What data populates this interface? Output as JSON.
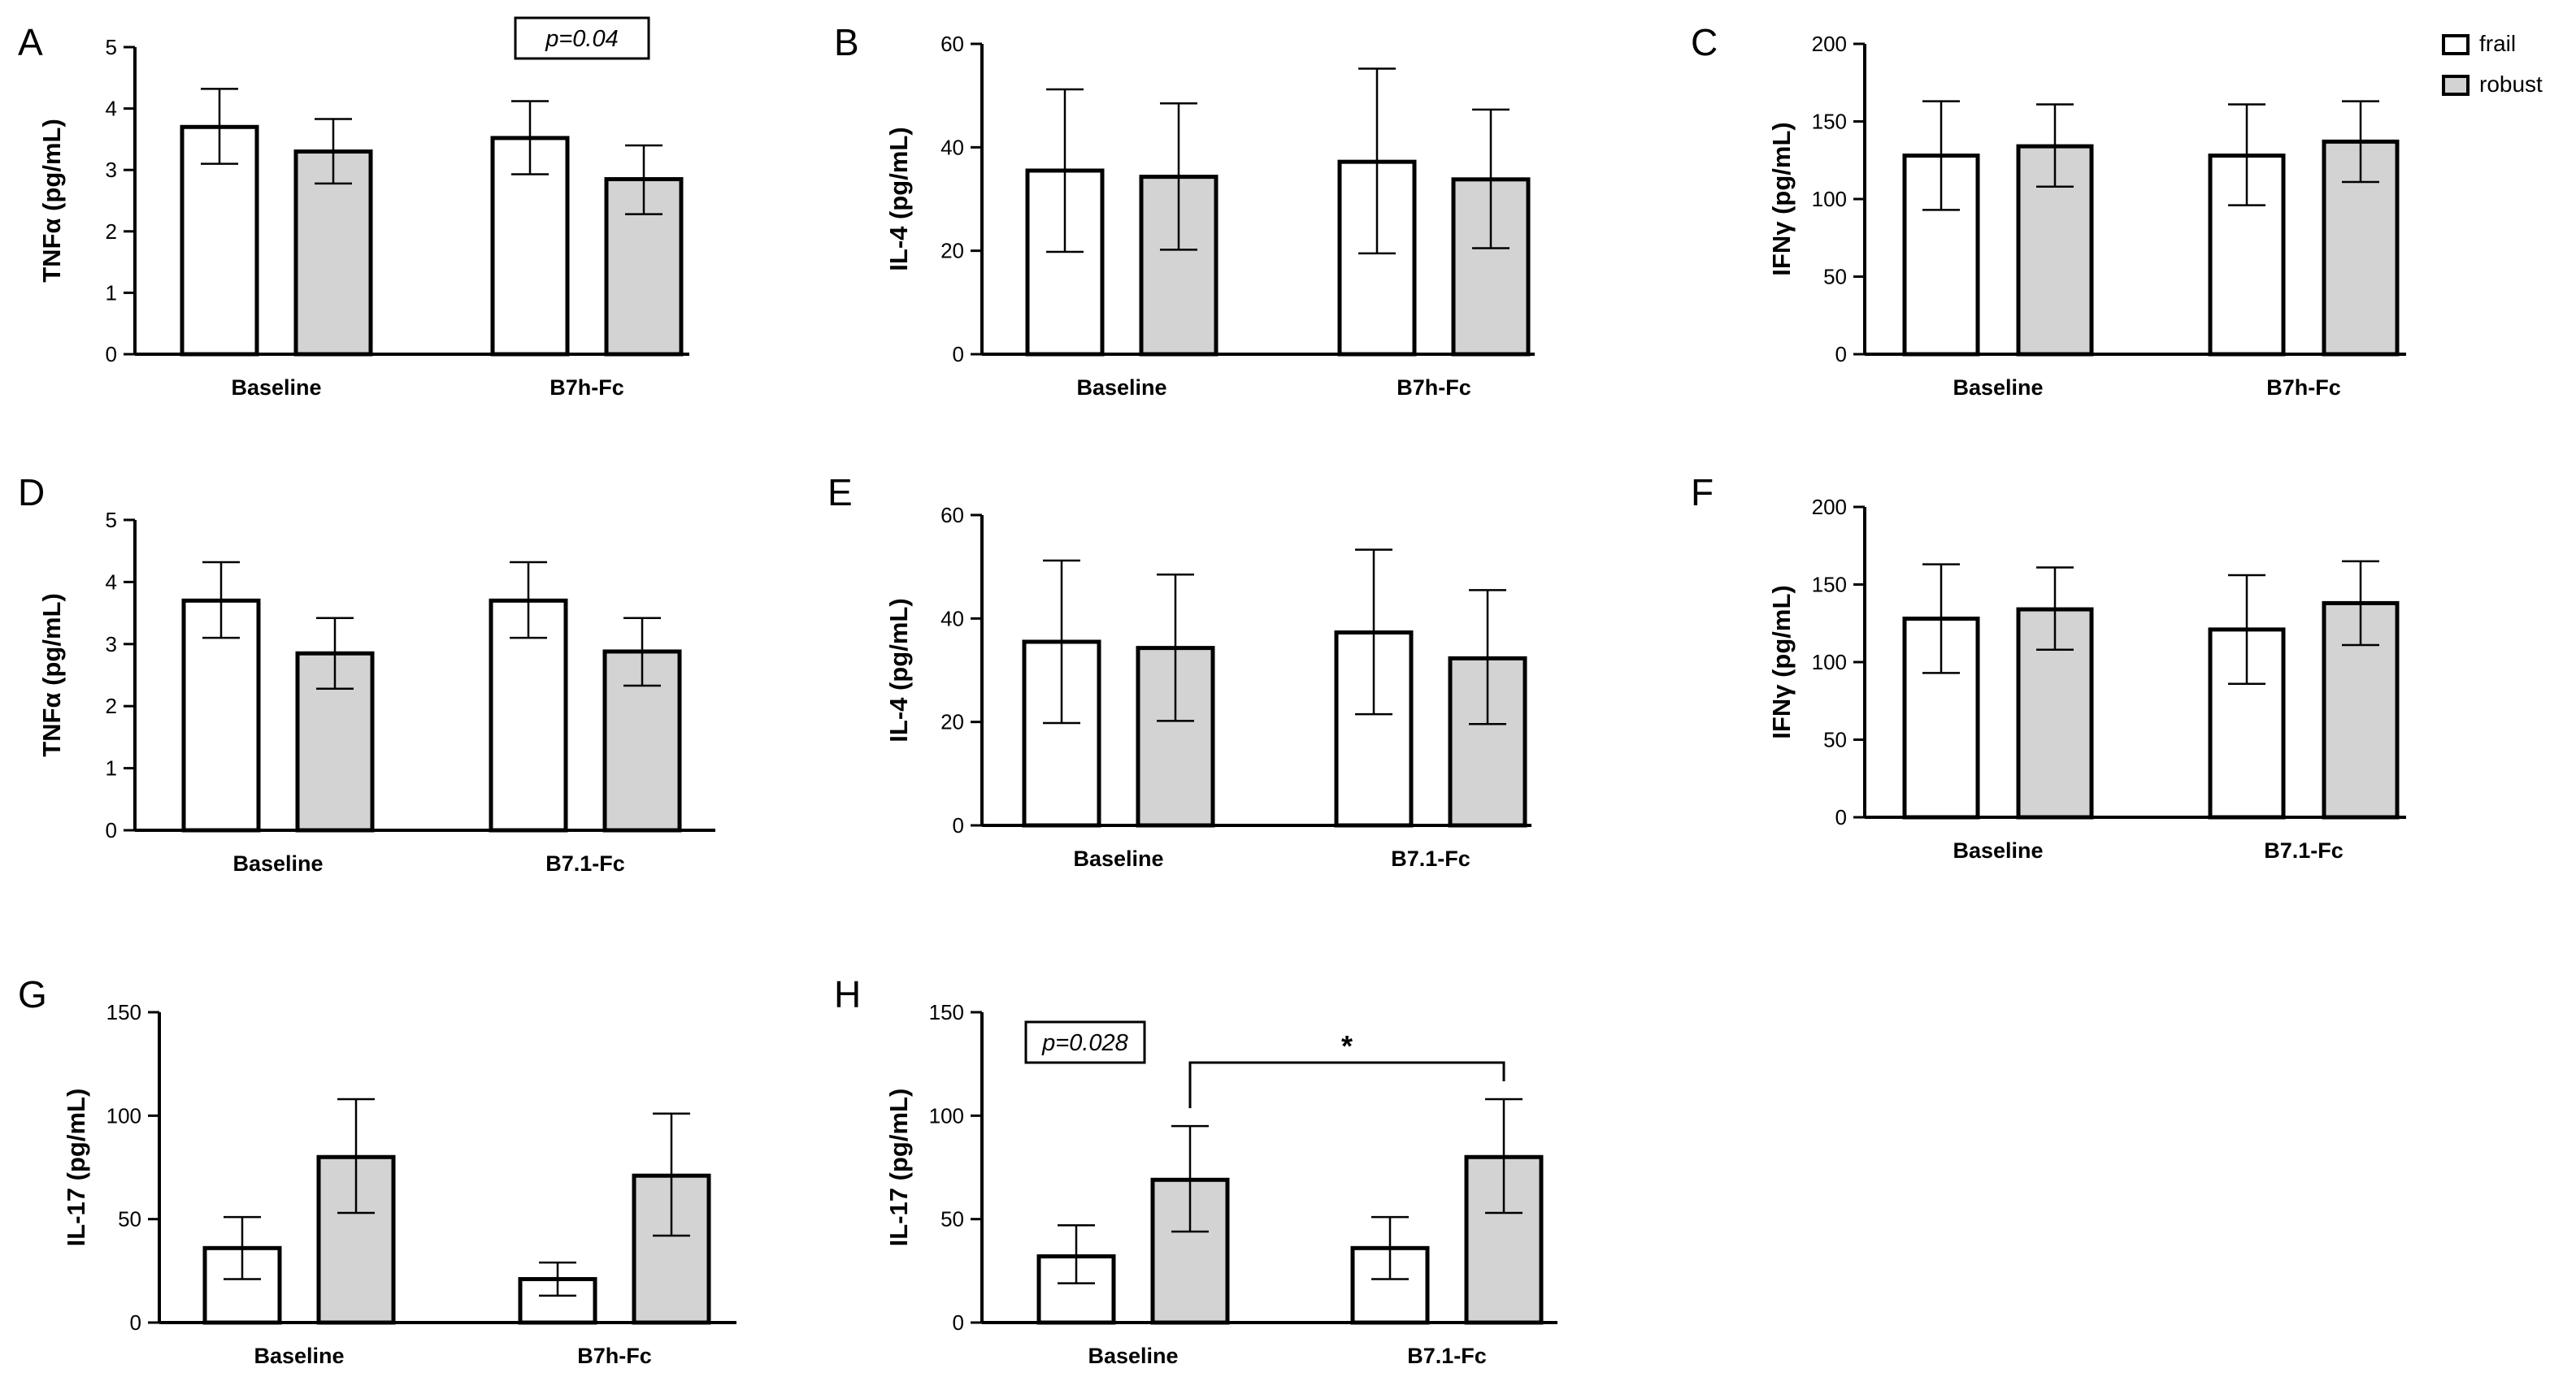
{
  "legend": [
    {
      "name": "frail",
      "color": "#ffffff"
    },
    {
      "name": "robust",
      "color": "#d3d3d3"
    }
  ],
  "colors": {
    "frail": "#ffffff",
    "robust": "#d3d3d3",
    "stroke": "#000000"
  },
  "chart_data": [
    {
      "panel": "A",
      "type": "bar",
      "title": "",
      "ylabel": "TNFα (pg/mL)",
      "xlabel": "",
      "categories": [
        "Baseline",
        "B7h-Fc"
      ],
      "ylim": [
        0,
        5
      ],
      "yticks": [
        0,
        1,
        2,
        3,
        4,
        5
      ],
      "series": [
        {
          "name": "frail",
          "values": [
            3.7,
            3.52
          ],
          "err_low": [
            3.1,
            2.93
          ],
          "err_high": [
            4.32,
            4.12
          ]
        },
        {
          "name": "robust",
          "values": [
            3.3,
            2.85
          ],
          "err_low": [
            2.78,
            2.28
          ],
          "err_high": [
            3.83,
            3.4
          ]
        }
      ],
      "annotation": "p=0.04"
    },
    {
      "panel": "B",
      "type": "bar",
      "title": "",
      "ylabel": "IL-4 (pg/mL)",
      "xlabel": "",
      "categories": [
        "Baseline",
        "B7h-Fc"
      ],
      "ylim": [
        0,
        60
      ],
      "yticks": [
        0,
        20,
        40,
        60
      ],
      "series": [
        {
          "name": "frail",
          "values": [
            35.5,
            37.2
          ],
          "err_low": [
            19.8,
            19.5
          ],
          "err_high": [
            51.2,
            55.2
          ]
        },
        {
          "name": "robust",
          "values": [
            34.3,
            33.8
          ],
          "err_low": [
            20.2,
            20.5
          ],
          "err_high": [
            48.5,
            47.3
          ]
        }
      ]
    },
    {
      "panel": "C",
      "type": "bar",
      "title": "",
      "ylabel": "IFNγ (pg/mL)",
      "xlabel": "",
      "categories": [
        "Baseline",
        "B7h-Fc"
      ],
      "ylim": [
        0,
        200
      ],
      "yticks": [
        0,
        50,
        100,
        150,
        200
      ],
      "series": [
        {
          "name": "frail",
          "values": [
            128,
            128
          ],
          "err_low": [
            93,
            96
          ],
          "err_high": [
            163,
            161
          ]
        },
        {
          "name": "robust",
          "values": [
            134,
            137
          ],
          "err_low": [
            108,
            111
          ],
          "err_high": [
            161,
            163
          ]
        }
      ],
      "legend_position": "top-right"
    },
    {
      "panel": "D",
      "type": "bar",
      "title": "",
      "ylabel": "TNFα (pg/mL)",
      "xlabel": "",
      "categories": [
        "Baseline",
        "B7.1-Fc"
      ],
      "ylim": [
        0,
        5
      ],
      "yticks": [
        0,
        1,
        2,
        3,
        4,
        5
      ],
      "series": [
        {
          "name": "frail",
          "values": [
            3.7,
            3.7
          ],
          "err_low": [
            3.1,
            3.1
          ],
          "err_high": [
            4.32,
            4.32
          ]
        },
        {
          "name": "robust",
          "values": [
            2.85,
            2.88
          ],
          "err_low": [
            2.28,
            2.33
          ],
          "err_high": [
            3.42,
            3.42
          ]
        }
      ]
    },
    {
      "panel": "E",
      "type": "bar",
      "title": "",
      "ylabel": "IL-4 (pg/mL)",
      "xlabel": "",
      "categories": [
        "Baseline",
        "B7.1-Fc"
      ],
      "ylim": [
        0,
        60
      ],
      "yticks": [
        0,
        20,
        40,
        60
      ],
      "series": [
        {
          "name": "frail",
          "values": [
            35.5,
            37.3
          ],
          "err_low": [
            19.8,
            21.5
          ],
          "err_high": [
            51.2,
            53.3
          ]
        },
        {
          "name": "robust",
          "values": [
            34.3,
            32.3
          ],
          "err_low": [
            20.2,
            19.6
          ],
          "err_high": [
            48.5,
            45.5
          ]
        }
      ]
    },
    {
      "panel": "F",
      "type": "bar",
      "title": "",
      "ylabel": "IFNγ (pg/mL)",
      "xlabel": "",
      "categories": [
        "Baseline",
        "B7.1-Fc"
      ],
      "ylim": [
        0,
        200
      ],
      "yticks": [
        0,
        50,
        100,
        150,
        200
      ],
      "series": [
        {
          "name": "frail",
          "values": [
            128,
            121
          ],
          "err_low": [
            93,
            86
          ],
          "err_high": [
            163,
            156
          ]
        },
        {
          "name": "robust",
          "values": [
            134,
            138
          ],
          "err_low": [
            108,
            111
          ],
          "err_high": [
            161,
            165
          ]
        }
      ]
    },
    {
      "panel": "G",
      "type": "bar",
      "title": "",
      "ylabel": "IL-17 (pg/mL)",
      "xlabel": "",
      "categories": [
        "Baseline",
        "B7h-Fc"
      ],
      "ylim": [
        0,
        150
      ],
      "yticks": [
        0,
        50,
        100,
        150
      ],
      "series": [
        {
          "name": "frail",
          "values": [
            36,
            21
          ],
          "err_low": [
            21,
            13
          ],
          "err_high": [
            51,
            29
          ]
        },
        {
          "name": "robust",
          "values": [
            80,
            71
          ],
          "err_low": [
            53,
            42
          ],
          "err_high": [
            108,
            101
          ]
        }
      ]
    },
    {
      "panel": "H",
      "type": "bar",
      "title": "",
      "ylabel": "IL-17 (pg/mL)",
      "xlabel": "",
      "categories": [
        "Baseline",
        "B7.1-Fc"
      ],
      "ylim": [
        0,
        150
      ],
      "yticks": [
        0,
        50,
        100,
        150
      ],
      "series": [
        {
          "name": "frail",
          "values": [
            32,
            36
          ],
          "err_low": [
            19,
            21
          ],
          "err_high": [
            47,
            51
          ]
        },
        {
          "name": "robust",
          "values": [
            69,
            80
          ],
          "err_low": [
            44,
            53
          ],
          "err_high": [
            95,
            108
          ]
        }
      ],
      "annotation": "p=0.028",
      "significance": {
        "from": {
          "category": 0,
          "series": 1
        },
        "to": {
          "category": 1,
          "series": 1
        },
        "label": "*"
      }
    }
  ]
}
